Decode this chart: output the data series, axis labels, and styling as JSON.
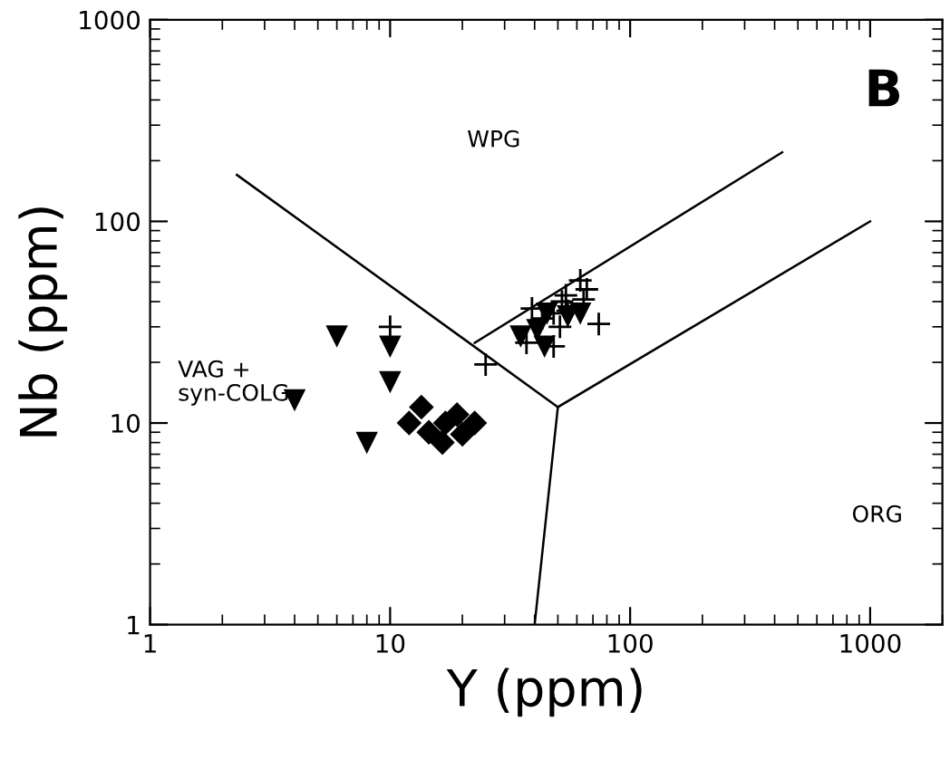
{
  "chart_data": {
    "type": "scatter",
    "xlabel": "Y (ppm)",
    "ylabel": "Nb (ppm)",
    "log": "xy",
    "grid": false,
    "legend": false,
    "xlim": [
      1,
      2000
    ],
    "ylim": [
      1,
      1000
    ],
    "xticks": [
      1,
      10,
      100,
      1000
    ],
    "yticks": [
      1,
      10,
      100,
      1000
    ],
    "series": [
      {
        "type": "scatter",
        "marker": "triangle",
        "color": "#000000",
        "x": [
          4,
          6,
          8,
          10,
          10,
          35,
          44,
          62,
          55,
          41,
          45
        ],
        "values": [
          13,
          27,
          8,
          24,
          16,
          27,
          24,
          35,
          34,
          29,
          35
        ]
      },
      {
        "type": "scatter",
        "marker": "diamond",
        "color": "#000000",
        "x": [
          12,
          13.5,
          14.5,
          16.5,
          17,
          19,
          20,
          22.5
        ],
        "values": [
          10,
          12,
          9,
          8,
          10,
          11,
          8.8,
          10
        ]
      },
      {
        "type": "scatter",
        "marker": "cross",
        "color": "#000000",
        "x": [
          10,
          25,
          39,
          37,
          74,
          62,
          52,
          48,
          51,
          54,
          43,
          64,
          48,
          55,
          66
        ],
        "values": [
          30,
          19.5,
          37,
          25,
          31,
          51,
          40,
          35,
          30,
          43,
          33,
          41,
          24,
          36,
          46
        ]
      },
      {
        "type": "line",
        "marker": "none",
        "line_style": "solid",
        "color": "#000000",
        "x": [
          2.3,
          50,
          40
        ],
        "values": [
          170,
          12,
          1
        ]
      },
      {
        "type": "line",
        "marker": "none",
        "line_style": "solid",
        "color": "#000000",
        "x": [
          50,
          1000
        ],
        "values": [
          12,
          100
        ]
      },
      {
        "type": "line",
        "marker": "none",
        "line_style": "solid",
        "color": "#000000",
        "x": [
          22.5,
          430
        ],
        "values": [
          25,
          220
        ]
      }
    ],
    "annotations": [
      "B",
      "WPG",
      "VAG +\nsyn-COLG",
      "ORG"
    ]
  }
}
